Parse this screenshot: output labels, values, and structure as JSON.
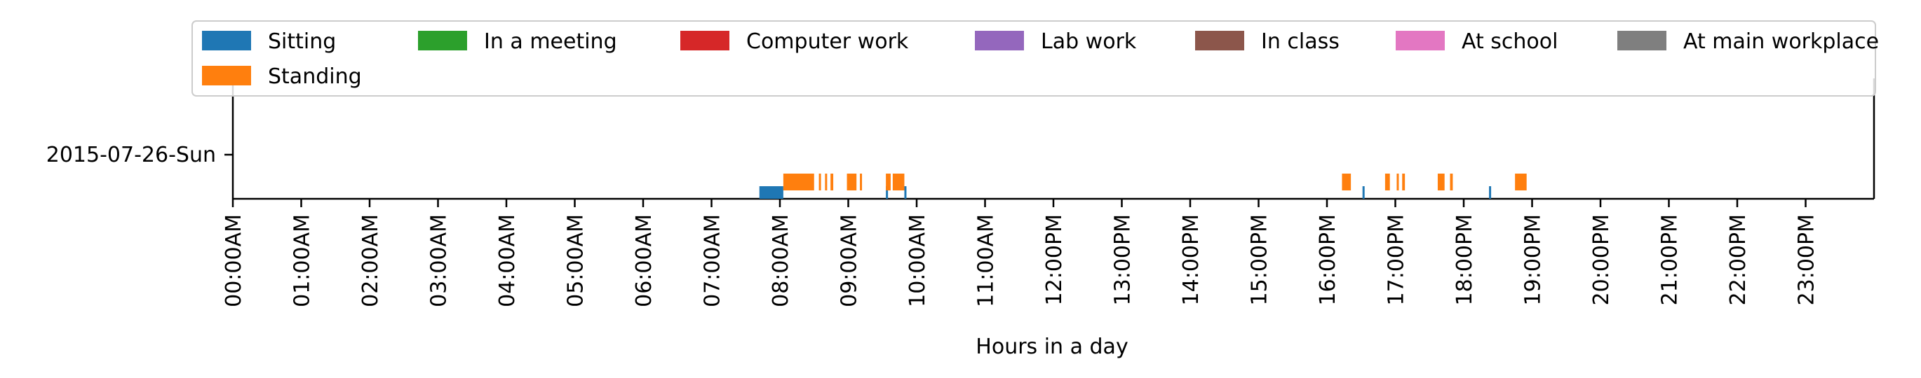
{
  "chart_data": {
    "type": "timeline",
    "xlabel": "Hours in a day",
    "y_categories": [
      "2015-07-26-Sun"
    ],
    "x_range_hours": [
      0,
      24
    ],
    "x_ticks": [
      "00:00AM",
      "01:00AM",
      "02:00AM",
      "03:00AM",
      "04:00AM",
      "05:00AM",
      "06:00AM",
      "07:00AM",
      "08:00AM",
      "09:00AM",
      "10:00AM",
      "11:00AM",
      "12:00PM",
      "13:00PM",
      "14:00PM",
      "15:00PM",
      "16:00PM",
      "17:00PM",
      "18:00PM",
      "19:00PM",
      "20:00PM",
      "21:00PM",
      "22:00PM",
      "23:00PM"
    ],
    "legend_position": "top",
    "series": [
      {
        "name": "Sitting",
        "color": "#1f77b4",
        "intervals": [
          [
            7.7,
            8.05
          ],
          [
            9.55,
            9.58
          ],
          [
            9.82,
            9.85
          ],
          [
            16.52,
            16.55
          ],
          [
            18.37,
            18.4
          ]
        ]
      },
      {
        "name": "In a meeting",
        "color": "#2ca02c",
        "intervals": []
      },
      {
        "name": "Computer work",
        "color": "#d62728",
        "intervals": []
      },
      {
        "name": "Lab work",
        "color": "#9467bd",
        "intervals": []
      },
      {
        "name": "In class",
        "color": "#8c564b",
        "intervals": []
      },
      {
        "name": "At school",
        "color": "#e377c2",
        "intervals": []
      },
      {
        "name": "At main workplace",
        "color": "#7f7f7f",
        "intervals": []
      },
      {
        "name": "Standing",
        "color": "#ff7f0e",
        "intervals": [
          [
            8.05,
            8.5
          ],
          [
            8.57,
            8.6
          ],
          [
            8.66,
            8.69
          ],
          [
            8.74,
            8.78
          ],
          [
            8.98,
            9.12
          ],
          [
            9.17,
            9.2
          ],
          [
            9.55,
            9.62
          ],
          [
            9.65,
            9.82
          ],
          [
            16.22,
            16.35
          ],
          [
            16.85,
            16.92
          ],
          [
            17.02,
            17.05
          ],
          [
            17.1,
            17.14
          ],
          [
            17.62,
            17.72
          ],
          [
            17.8,
            17.84
          ],
          [
            18.75,
            18.92
          ]
        ]
      }
    ]
  }
}
